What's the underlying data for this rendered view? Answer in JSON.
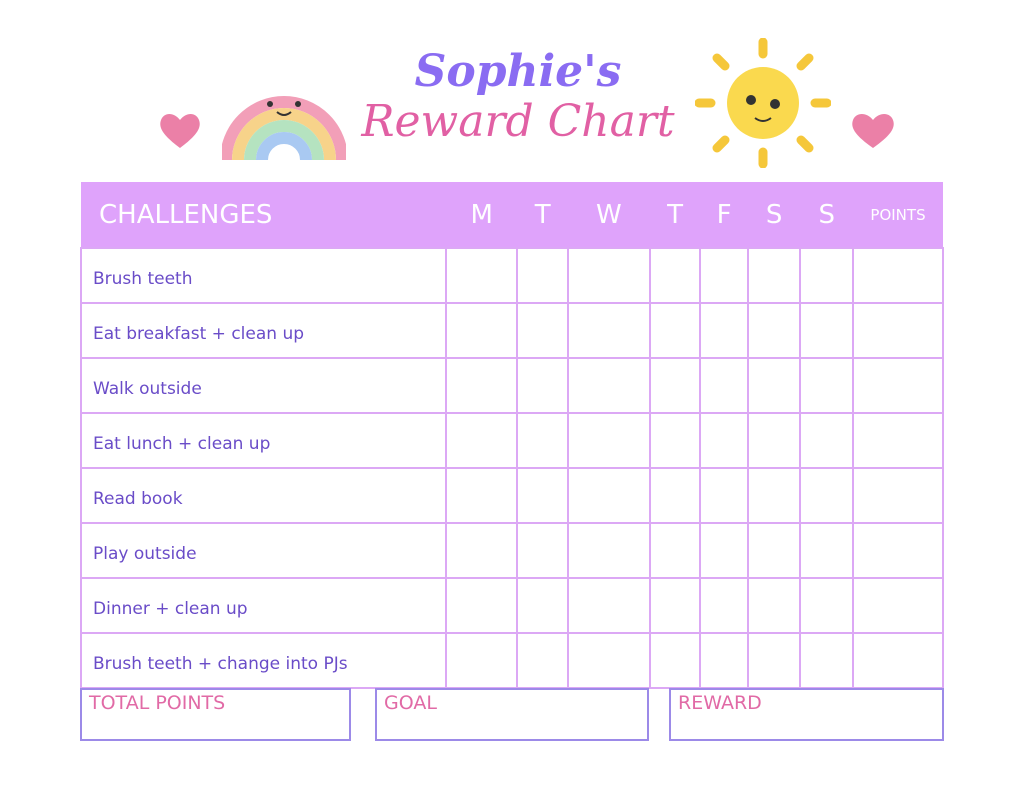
{
  "title": {
    "name": "Sophie's",
    "subtitle": "Reward Chart"
  },
  "colors": {
    "header": "#dfa3fb",
    "title_purple": "#8a6cf2",
    "title_pink": "#e160a4",
    "challenge_text": "#6a4cc8",
    "grid": "#dca8f5",
    "box_border": "#9c8ae8",
    "box_label": "#e16aa6"
  },
  "decorations": [
    "heart-icon",
    "rainbow-icon",
    "sun-icon",
    "heart-icon"
  ],
  "table": {
    "header": {
      "challenges": "CHALLENGES",
      "days": [
        "M",
        "T",
        "W",
        "T",
        "F",
        "S",
        "S"
      ],
      "points": "POINTS"
    },
    "rows": [
      "Brush teeth",
      "Eat breakfast + clean up",
      "Walk outside",
      "Eat lunch + clean up",
      "Read book",
      "Play outside",
      "Dinner + clean up",
      "Brush teeth + change into PJs"
    ]
  },
  "footer": {
    "total": "TOTAL POINTS",
    "goal": "GOAL",
    "reward": "REWARD"
  }
}
